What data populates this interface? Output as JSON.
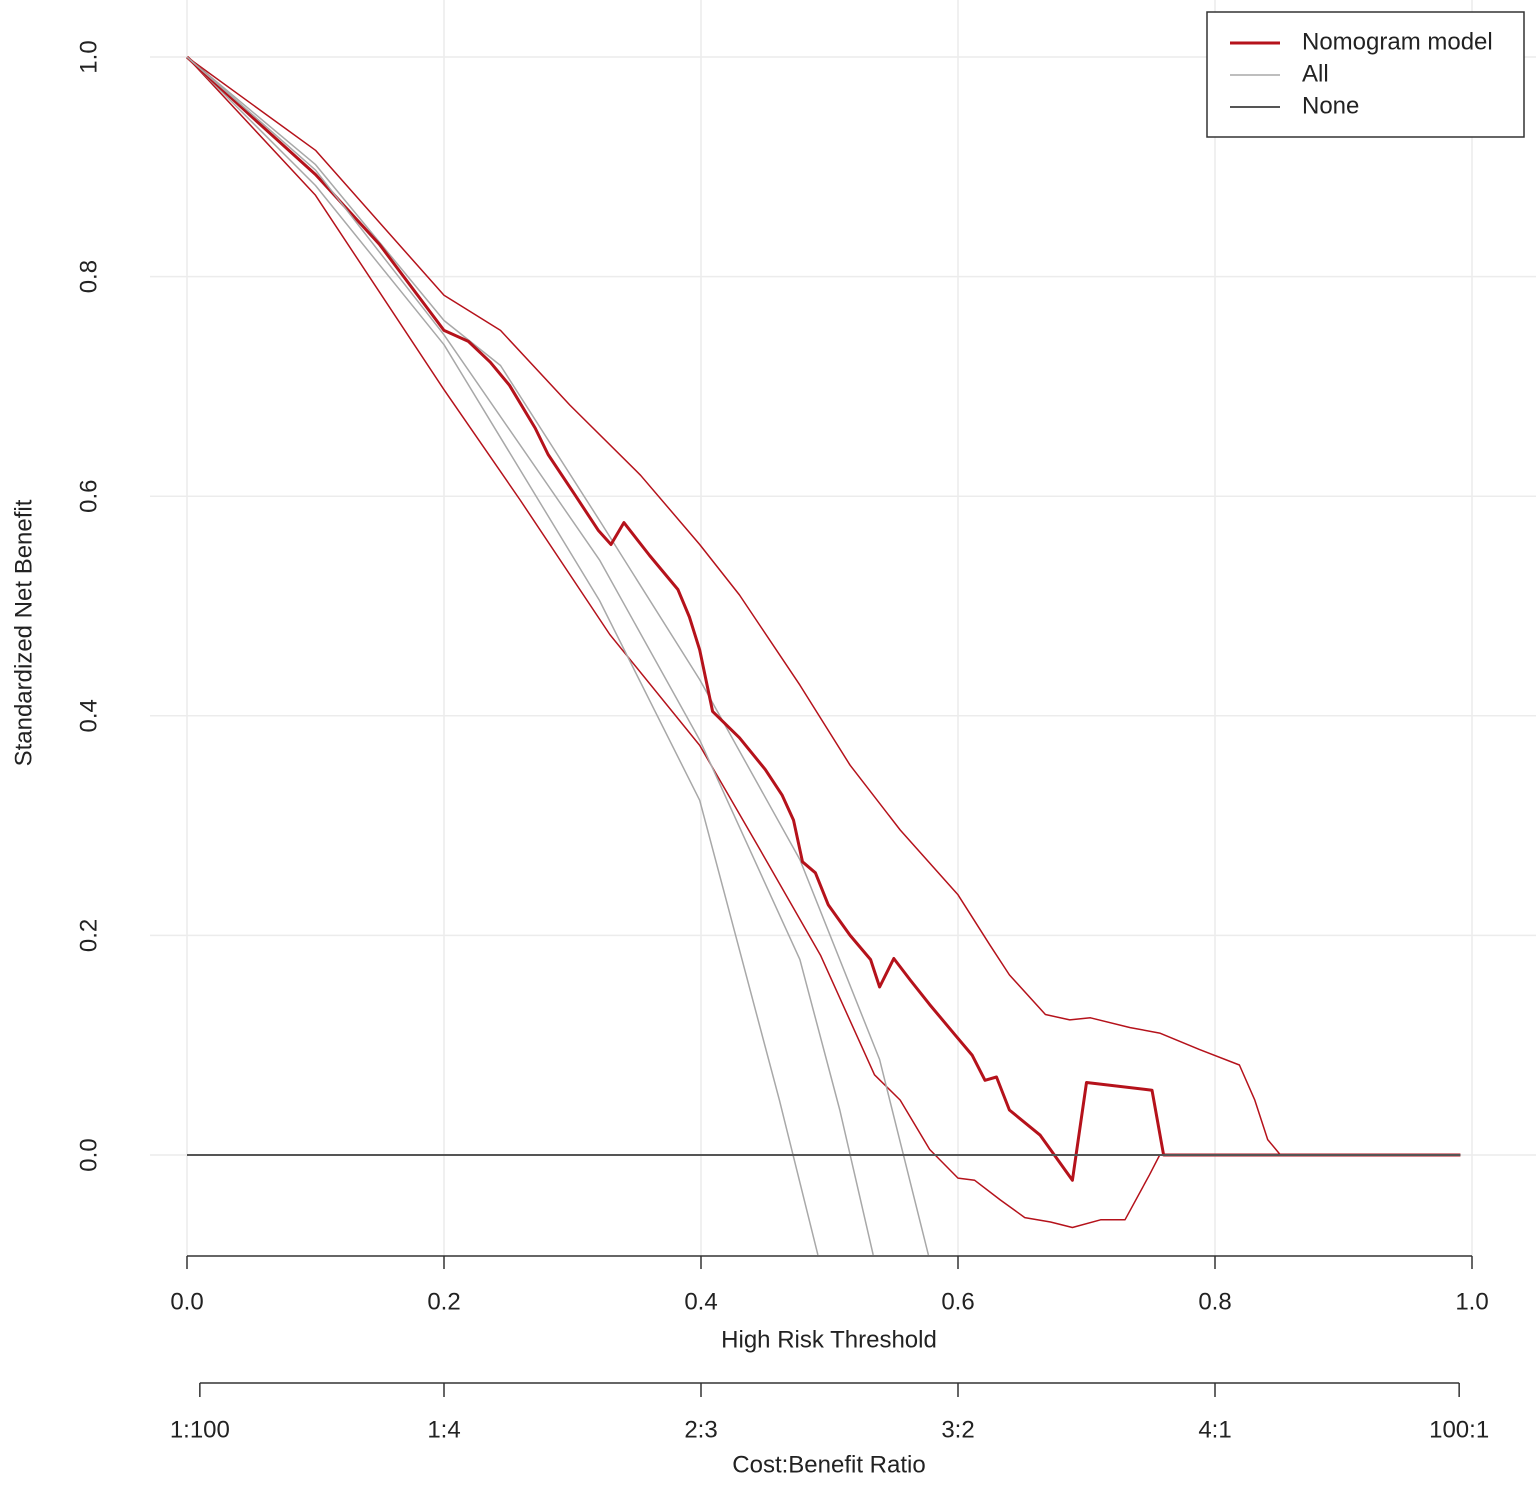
{
  "chart_data": {
    "type": "line",
    "xlabel": "High Risk Threshold",
    "ylabel": "Standardized Net Benefit",
    "x2label": "Cost:Benefit Ratio",
    "xlim": [
      0,
      1
    ],
    "ylim": [
      -0.092,
      1.0
    ],
    "xticks": [
      {
        "value": 0,
        "label": "0.0"
      },
      0.2,
      0.4,
      0.6,
      0.8,
      {
        "value": 1,
        "label": "1.0"
      }
    ],
    "yticks": [
      {
        "value": 0,
        "label": "0.0"
      },
      0.2,
      0.4,
      0.6,
      0.8,
      {
        "value": 1,
        "label": "1.0"
      }
    ],
    "x2ticks": [
      {
        "value": 0.01,
        "label": "1:100"
      },
      {
        "value": 0.2,
        "label": "1:4"
      },
      {
        "value": 0.4,
        "label": "2:3"
      },
      {
        "value": 0.6,
        "label": "3:2"
      },
      {
        "value": 0.8,
        "label": "4:1"
      },
      {
        "value": 0.99,
        "label": "100:1"
      }
    ],
    "grid": true,
    "legend": "topright",
    "series": [
      {
        "name": "Nomogram model",
        "color": "#b5121b",
        "width": 3,
        "x": [
          0,
          0.049,
          0.1,
          0.15,
          0.2,
          0.219,
          0.236,
          0.251,
          0.271,
          0.281,
          0.302,
          0.32,
          0.33,
          0.34,
          0.36,
          0.382,
          0.391,
          0.399,
          0.409,
          0.43,
          0.45,
          0.463,
          0.472,
          0.479,
          0.489,
          0.499,
          0.516,
          0.532,
          0.539,
          0.55,
          0.563,
          0.578,
          0.598,
          0.611,
          0.621,
          0.63,
          0.64,
          0.664,
          0.689,
          0.7,
          0.751,
          0.76,
          0.991
        ],
        "values": [
          1.0,
          0.947,
          0.893,
          0.829,
          0.751,
          0.741,
          0.722,
          0.701,
          0.662,
          0.638,
          0.601,
          0.569,
          0.556,
          0.576,
          0.546,
          0.515,
          0.49,
          0.46,
          0.404,
          0.38,
          0.351,
          0.328,
          0.305,
          0.267,
          0.257,
          0.228,
          0.2,
          0.178,
          0.153,
          0.179,
          0.159,
          0.137,
          0.109,
          0.091,
          0.068,
          0.071,
          0.041,
          0.018,
          -0.023,
          0.066,
          0.059,
          0,
          0
        ],
        "ci_upper": {
          "x": [
            0,
            0.1,
            0.2,
            0.244,
            0.298,
            0.353,
            0.399,
            0.43,
            0.477,
            0.516,
            0.555,
            0.6,
            0.625,
            0.64,
            0.668,
            0.687,
            0.703,
            0.734,
            0.757,
            0.788,
            0.819,
            0.831,
            0.841,
            0.851,
            0.991
          ],
          "values": [
            1.0,
            0.915,
            0.783,
            0.751,
            0.683,
            0.619,
            0.556,
            0.51,
            0.428,
            0.355,
            0.296,
            0.237,
            0.191,
            0.164,
            0.128,
            0.123,
            0.125,
            0.116,
            0.111,
            0.096,
            0.082,
            0.05,
            0.014,
            0,
            0
          ]
        },
        "ci_lower": {
          "x": [
            0,
            0.1,
            0.2,
            0.259,
            0.329,
            0.399,
            0.446,
            0.493,
            0.535,
            0.555,
            0.578,
            0.6,
            0.613,
            0.633,
            0.652,
            0.672,
            0.689,
            0.711,
            0.73,
            0.749,
            0.757,
            0.991
          ],
          "values": [
            1.0,
            0.874,
            0.697,
            0.597,
            0.474,
            0.373,
            0.278,
            0.182,
            0.073,
            0.05,
            0.005,
            -0.021,
            -0.023,
            -0.041,
            -0.057,
            -0.061,
            -0.066,
            -0.059,
            -0.059,
            -0.018,
            0,
            0
          ]
        }
      },
      {
        "name": "All",
        "color": "#a8a8a8",
        "width": 1.5,
        "x": [
          0,
          0.1,
          0.2,
          0.321,
          0.399,
          0.477,
          0.508,
          0.534
        ],
        "values": [
          1.0,
          0.897,
          0.747,
          0.542,
          0.378,
          0.178,
          0.041,
          -0.091
        ],
        "ci_upper": {
          "x": [
            0,
            0.1,
            0.2,
            0.244,
            0.321,
            0.399,
            0.477,
            0.539,
            0.577
          ],
          "values": [
            1.0,
            0.902,
            0.76,
            0.719,
            0.578,
            0.433,
            0.269,
            0.087,
            -0.091
          ]
        },
        "ci_lower": {
          "x": [
            0,
            0.1,
            0.2,
            0.321,
            0.399,
            0.461,
            0.491
          ],
          "values": [
            1.0,
            0.883,
            0.738,
            0.505,
            0.323,
            0.05,
            -0.091
          ]
        }
      },
      {
        "name": "None",
        "color": "#555555",
        "width": 2,
        "x": [
          0,
          0.991
        ],
        "values": [
          0,
          0
        ]
      }
    ]
  }
}
